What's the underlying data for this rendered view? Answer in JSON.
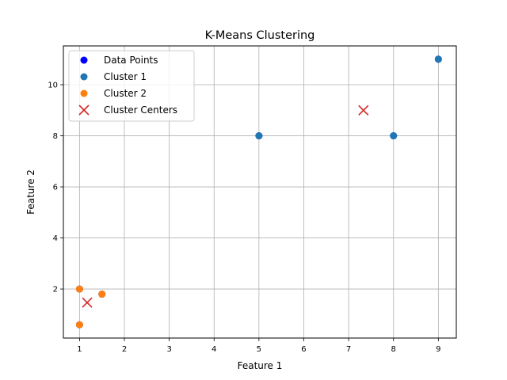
{
  "chart_data": {
    "type": "scatter",
    "title": "K-Means Clustering",
    "xlabel": "Feature 1",
    "ylabel": "Feature 2",
    "xlim": [
      0.64,
      9.4
    ],
    "ylim": [
      0.08,
      11.52
    ],
    "xticks": [
      1,
      2,
      3,
      4,
      5,
      6,
      7,
      8,
      9
    ],
    "yticks": [
      2,
      4,
      6,
      8,
      10
    ],
    "grid": true,
    "legend_position": "top-left",
    "series": [
      {
        "name": "Data Points",
        "marker": "circle",
        "color": "#0000ff",
        "points": [
          [
            1,
            2
          ],
          [
            1.5,
            1.8
          ],
          [
            5,
            8
          ],
          [
            8,
            8
          ],
          [
            1,
            0.6
          ],
          [
            9,
            11
          ]
        ]
      },
      {
        "name": "Cluster 1",
        "marker": "circle",
        "color": "#1f77b4",
        "points": [
          [
            5,
            8
          ],
          [
            8,
            8
          ],
          [
            9,
            11
          ]
        ]
      },
      {
        "name": "Cluster 2",
        "marker": "circle",
        "color": "#ff7f0e",
        "points": [
          [
            1,
            2
          ],
          [
            1.5,
            1.8
          ],
          [
            1,
            0.6
          ]
        ]
      },
      {
        "name": "Cluster Centers",
        "marker": "x",
        "color": "#d62728",
        "points": [
          [
            7.33,
            9.0
          ],
          [
            1.17,
            1.47
          ]
        ]
      }
    ]
  }
}
